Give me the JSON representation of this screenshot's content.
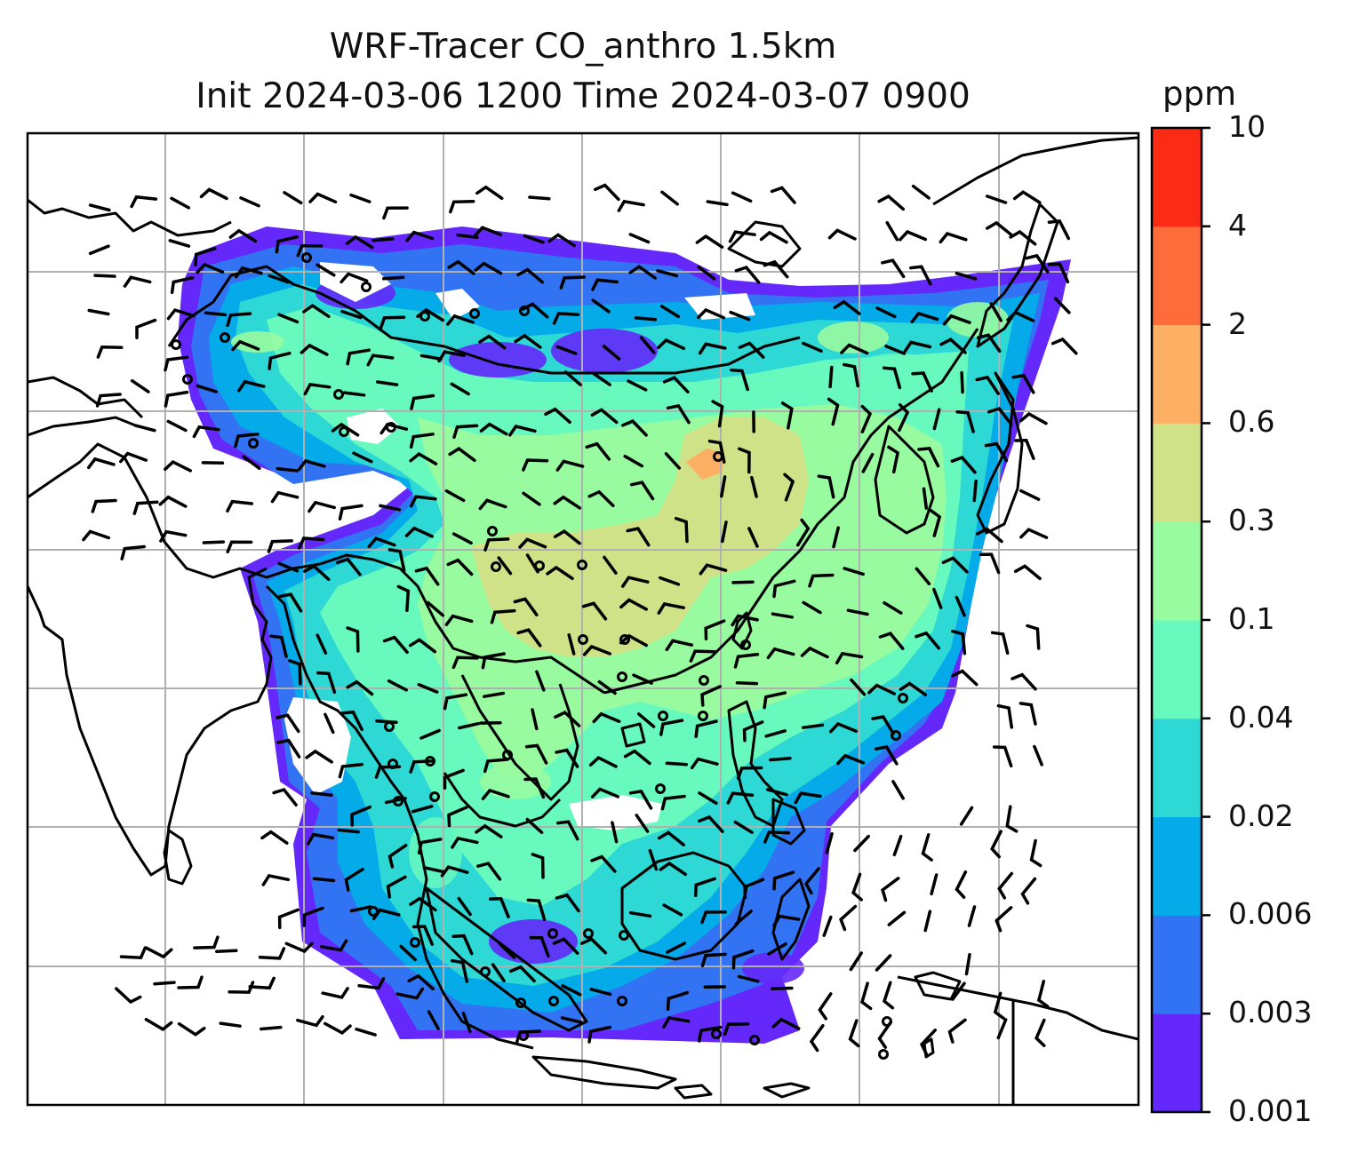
{
  "title": {
    "line1": "WRF-Tracer CO_anthro 1.5km",
    "line2": "Init 2024-03-06 1200 Time 2024-03-07 0900"
  },
  "colorbar": {
    "unit": "ppm",
    "tick_labels": [
      "0.001",
      "0.003",
      "0.006",
      "0.02",
      "0.04",
      "0.1",
      "0.3",
      "0.6",
      "2",
      "4",
      "10"
    ],
    "bin_colors": [
      "#6428fa",
      "#3273f3",
      "#05abe8",
      "#2ed8d4",
      "#67f9be",
      "#98fba0",
      "#cfe287",
      "#fdb063",
      "#fd6c3a",
      "#fb2b16"
    ]
  },
  "map": {
    "field": "CO_anthro",
    "grid": "on",
    "wind_barbs": "on",
    "coastlines": "on"
  }
}
